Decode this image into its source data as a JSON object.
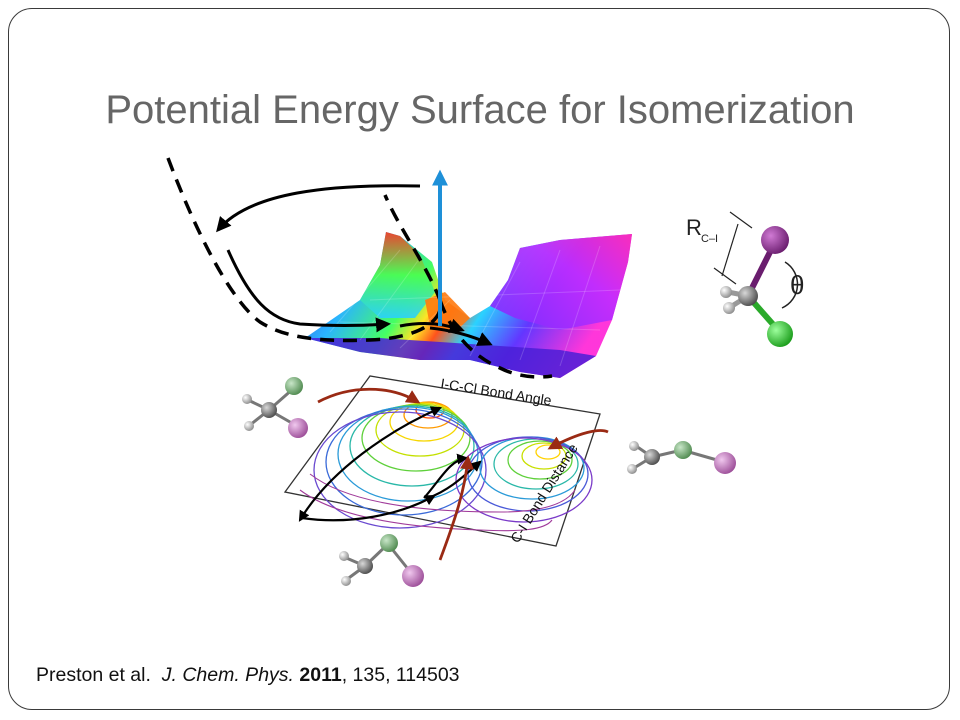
{
  "slide": {
    "title": "Potential Energy Surface for Isomerization",
    "citation": {
      "authors": "Preston et al.",
      "journal": "J. Chem. Phys.",
      "year": "2011",
      "volume_page": ", 135, 114503"
    }
  },
  "figure": {
    "contour_label_angle": "I-C-Cl Bond Angle",
    "contour_label_distance": "C-I Bond Distance",
    "geometry_label_R": "R",
    "geometry_label_R_sub": "C–I",
    "geometry_label_theta": "θ"
  },
  "colors": {
    "frame": "#3a3a3a",
    "title": "#666666",
    "upward_arrow": "#1e90d8",
    "reaction_arrow": "#9a2a14",
    "iodine": "#8b2a8e",
    "chlorine": "#2ecc2e",
    "carbon": "#7a7a7a",
    "hydrogen": "#ffffff",
    "chlorine_pale": "#7fae7f",
    "iodine_pale": "#c77fc4"
  }
}
